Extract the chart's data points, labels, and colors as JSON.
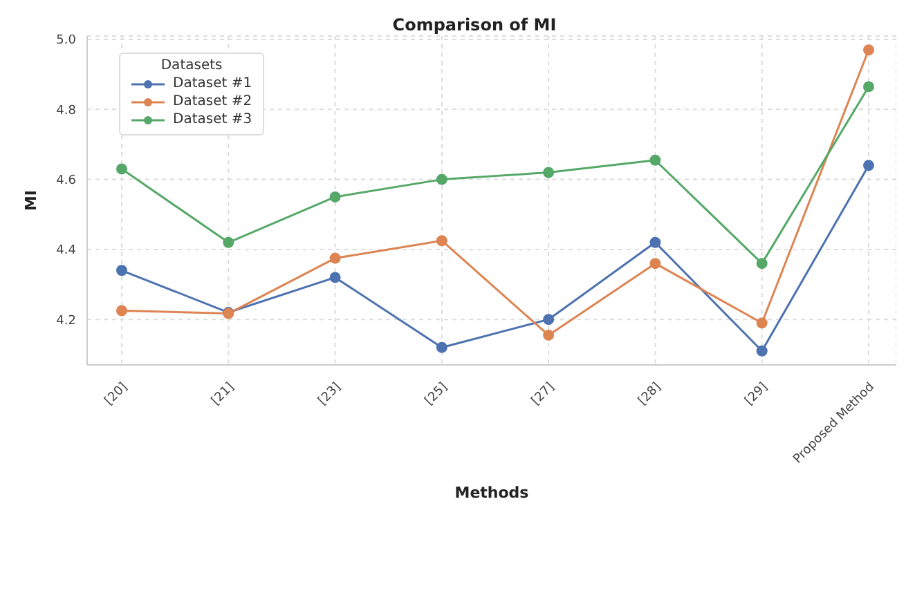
{
  "chart_data": {
    "type": "line",
    "title": "Comparison of MI",
    "xlabel": "Methods",
    "ylabel": "MI",
    "legend_title": "Datasets",
    "legend": "top left",
    "grid": true,
    "marker": "circle",
    "line_style": "solid",
    "categories": [
      "[20]",
      "[21]",
      "[23]",
      "[25]",
      "[27]",
      "[28]",
      "[29]",
      "Proposed Method"
    ],
    "ylim": [
      4.07,
      5.01
    ],
    "yticks": [
      {
        "value": 4.2,
        "label": "4.2"
      },
      {
        "value": 4.4,
        "label": "4.4"
      },
      {
        "value": 4.6,
        "label": "4.6"
      },
      {
        "value": 4.8,
        "label": "4.8"
      },
      {
        "value": 5,
        "label": "5.0"
      }
    ],
    "series": [
      {
        "name": "Dataset #1",
        "color": "#4c72b0",
        "values": [
          4.34,
          4.22,
          4.32,
          4.12,
          4.2,
          4.42,
          4.11,
          4.64
        ]
      },
      {
        "name": "Dataset #2",
        "color": "#dd8452",
        "values": [
          4.225,
          4.217,
          4.375,
          4.425,
          4.155,
          4.36,
          4.19,
          4.97
        ]
      },
      {
        "name": "Dataset #3",
        "color": "#55a868",
        "values": [
          4.63,
          4.42,
          4.55,
          4.6,
          4.62,
          4.655,
          4.36,
          4.865
        ]
      }
    ]
  }
}
